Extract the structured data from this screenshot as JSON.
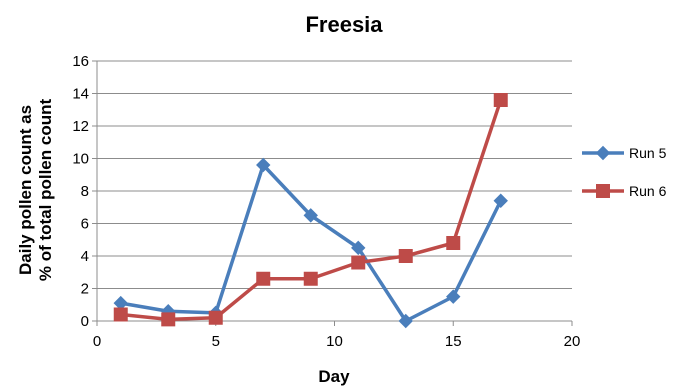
{
  "chart_data": {
    "type": "line",
    "title": "Freesia",
    "xlabel": "Day",
    "ylabel": [
      "Daily pollen count as",
      "% of total pollen count"
    ],
    "xlim": [
      0,
      20
    ],
    "ylim": [
      0,
      16
    ],
    "x_ticks": [
      0,
      5,
      10,
      15,
      20
    ],
    "y_ticks": [
      0,
      2,
      4,
      6,
      8,
      10,
      12,
      14,
      16
    ],
    "grid": "horizontal",
    "legend_position": "right",
    "series": [
      {
        "name": "Run 5",
        "color": "#4a7ebb",
        "marker": "diamond",
        "x": [
          1,
          3,
          5,
          7,
          9,
          11,
          13,
          15,
          17
        ],
        "y": [
          1.1,
          0.6,
          0.5,
          9.6,
          6.5,
          4.5,
          0.0,
          1.5,
          7.4
        ]
      },
      {
        "name": "Run 6",
        "color": "#be4b48",
        "marker": "square",
        "x": [
          1,
          3,
          5,
          7,
          9,
          11,
          13,
          15,
          17
        ],
        "y": [
          0.4,
          0.1,
          0.2,
          2.6,
          2.6,
          3.6,
          4.0,
          4.8,
          13.6
        ]
      }
    ]
  }
}
